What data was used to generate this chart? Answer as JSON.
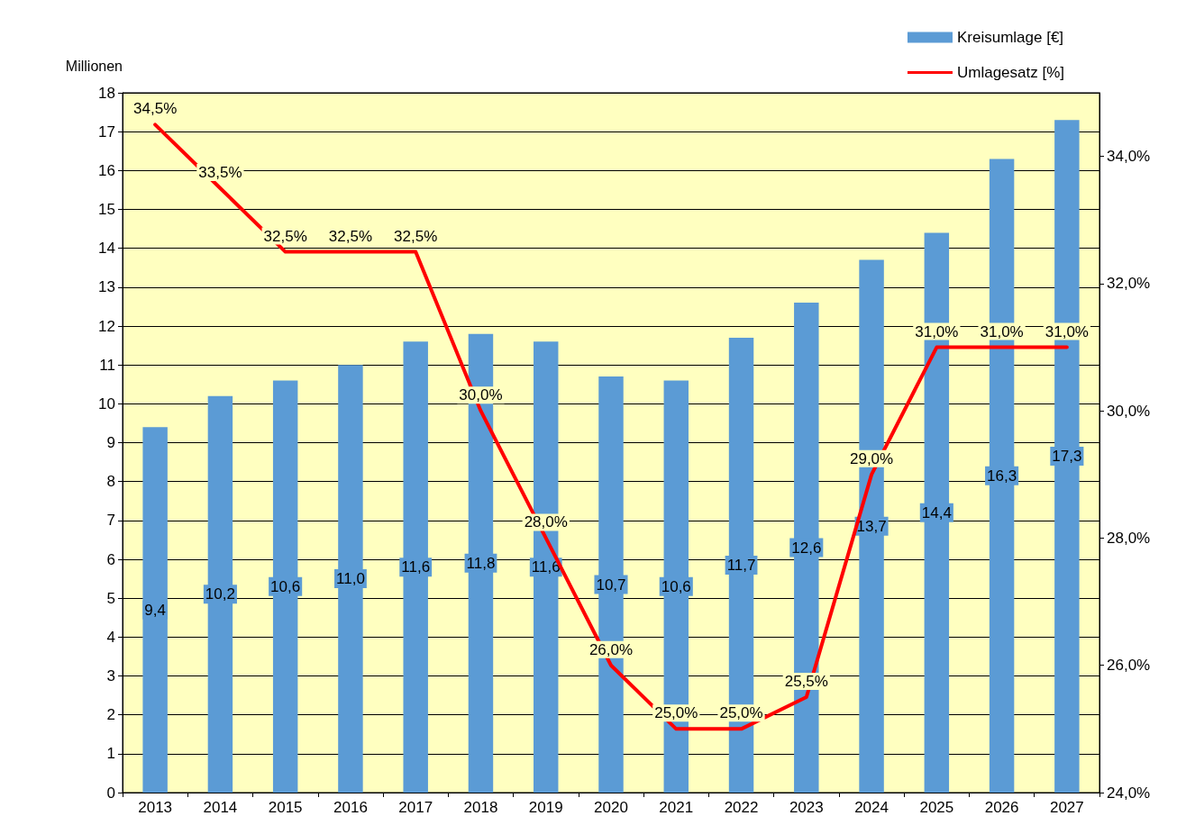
{
  "chart_data": {
    "type": "bar",
    "ylabel": "Millionen",
    "categories": [
      "2013",
      "2014",
      "2015",
      "2016",
      "2017",
      "2018",
      "2019",
      "2020",
      "2021",
      "2022",
      "2023",
      "2024",
      "2025",
      "2026",
      "2027"
    ],
    "series": [
      {
        "name": "Kreisumlage [€]",
        "color": "#5b9bd5",
        "values": [
          9.4,
          10.2,
          10.6,
          11.0,
          11.6,
          11.8,
          11.6,
          10.7,
          10.6,
          11.7,
          12.6,
          13.7,
          14.4,
          16.3,
          17.3
        ],
        "value_labels": [
          "9,4",
          "10,2",
          "10,6",
          "11,0",
          "11,6",
          "11,8",
          "11,6",
          "10,7",
          "10,6",
          "11,7",
          "12,6",
          "13,7",
          "14,4",
          "16,3",
          "17,3"
        ]
      },
      {
        "name": "Umlagesatz [%]",
        "type": "line",
        "axis": "y2",
        "color": "#ff0000",
        "values": [
          34.5,
          33.5,
          32.5,
          32.5,
          32.5,
          30.0,
          28.0,
          26.0,
          25.0,
          25.0,
          25.5,
          29.0,
          31.0,
          31.0,
          31.0
        ],
        "value_labels": [
          "34,5%",
          "33,5%",
          "32,5%",
          "32,5%",
          "32,5%",
          "30,0%",
          "28,0%",
          "26,0%",
          "25,0%",
          "25,0%",
          "25,5%",
          "29,0%",
          "31,0%",
          "31,0%",
          "31,0%"
        ]
      }
    ],
    "ylim": [
      0,
      18
    ],
    "yticks": [
      0,
      1,
      2,
      3,
      4,
      5,
      6,
      7,
      8,
      9,
      10,
      11,
      12,
      13,
      14,
      15,
      16,
      17,
      18
    ],
    "y2lim": [
      24,
      35
    ],
    "y2ticks": [
      {
        "value": 24,
        "label": "24,0%"
      },
      {
        "value": 26,
        "label": "26,0%"
      },
      {
        "value": 28,
        "label": "28,0%"
      },
      {
        "value": 30,
        "label": "30,0%"
      },
      {
        "value": 32,
        "label": "32,0%"
      },
      {
        "value": 34,
        "label": "34,0%"
      }
    ],
    "grid": "y",
    "legend": "top right",
    "marker": "none",
    "line_style": "solid"
  }
}
